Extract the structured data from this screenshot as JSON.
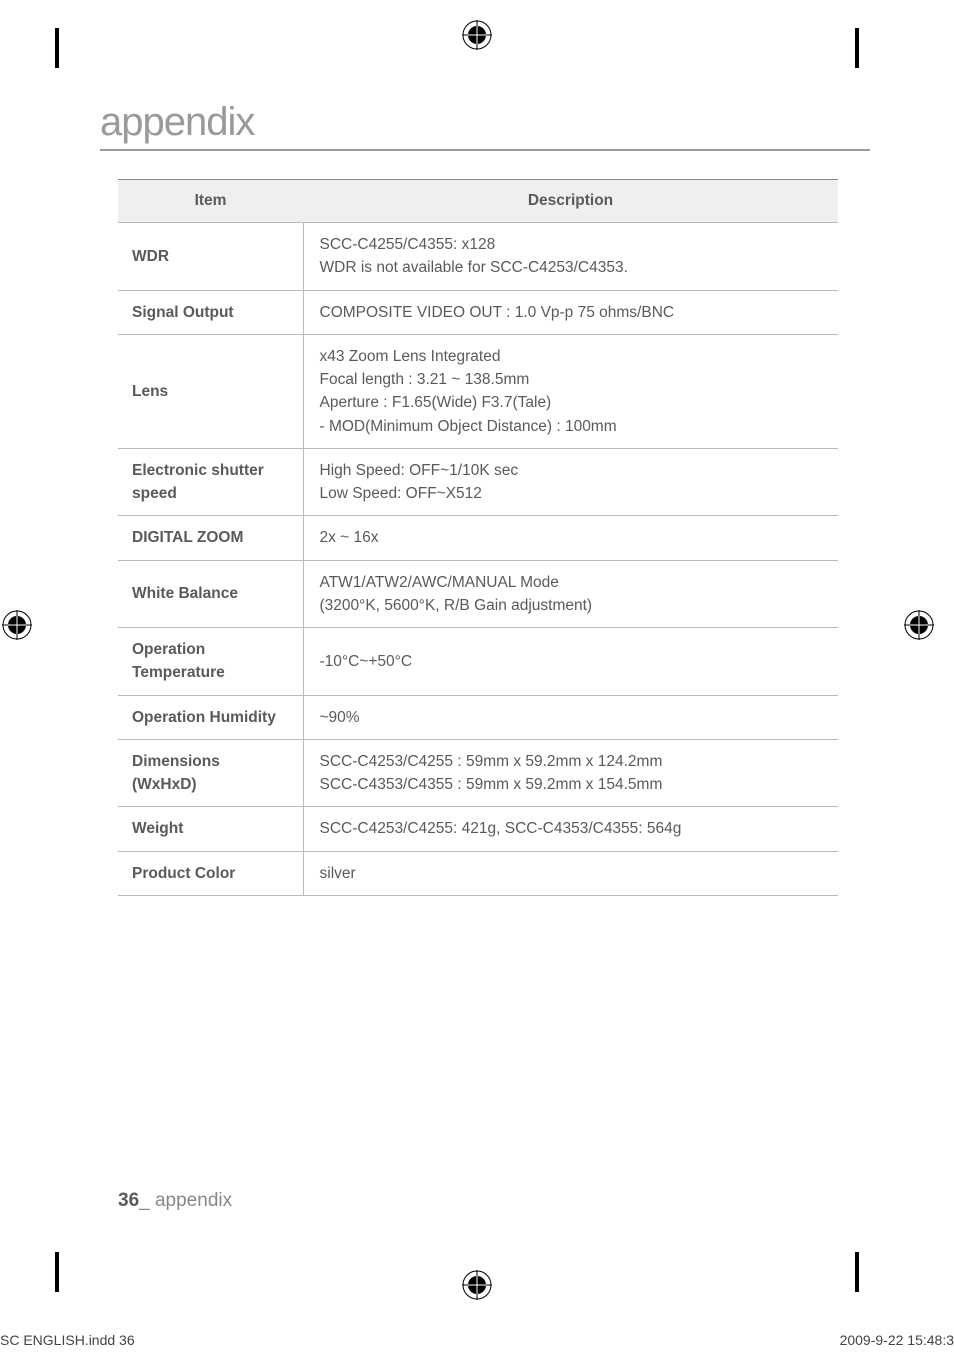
{
  "title": "appendix",
  "table": {
    "header_item": "Item",
    "header_desc": "Description",
    "rows": [
      {
        "item": "WDR",
        "desc": "SCC-C4255/C4355: x128\nWDR is not available for SCC-C4253/C4353."
      },
      {
        "item": "Signal Output",
        "desc": "COMPOSITE VIDEO OUT : 1.0 Vp-p 75 ohms/BNC"
      },
      {
        "item": "Lens",
        "desc": "x43 Zoom Lens Integrated\nFocal length : 3.21 ~ 138.5mm\nAperture : F1.65(Wide)  F3.7(Tale)\n- MOD(Minimum Object Distance) : 100mm"
      },
      {
        "item": "Electronic shutter speed",
        "desc": "High Speed: OFF~1/10K sec\nLow Speed: OFF~X512"
      },
      {
        "item": "DIGITAL ZOOM",
        "desc": "2x ~ 16x"
      },
      {
        "item": "White Balance",
        "desc": "ATW1/ATW2/AWC/MANUAL Mode\n(3200°K, 5600°K, R/B Gain adjustment)"
      },
      {
        "item": "Operation Temperature",
        "desc": "-10°C~+50°C"
      },
      {
        "item": "Operation Humidity",
        "desc": "~90%"
      },
      {
        "item": "Dimensions\n(WxHxD)",
        "desc": "SCC-C4253/C4255 : 59mm x 59.2mm x 124.2mm\nSCC-C4353/C4355 : 59mm x 59.2mm x 154.5mm"
      },
      {
        "item": "Weight",
        "desc": "SCC-C4253/C4255: 421g, SCC-C4353/C4355: 564g"
      },
      {
        "item": "Product Color",
        "desc": "silver"
      }
    ]
  },
  "footer": {
    "page_num": "36",
    "section": "_ appendix"
  },
  "indd_left": "SC ENGLISH.indd   36",
  "indd_right": "2009-9-22   15:48:3"
}
